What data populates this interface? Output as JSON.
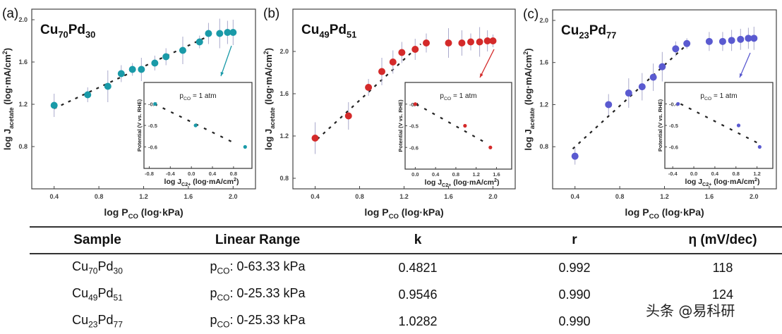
{
  "chart_data": [
    {
      "type": "scatter",
      "panel_label": "(a)",
      "title_parts": [
        {
          "t": "Cu"
        },
        {
          "t": "70",
          "s": "sub"
        },
        {
          "t": "Pd"
        },
        {
          "t": "30",
          "s": "sub"
        }
      ],
      "color": "#1a9aa8",
      "xlabel_parts": [
        {
          "t": "log P"
        },
        {
          "t": "CO",
          "s": "sub"
        },
        {
          "t": " (log·kPa)"
        }
      ],
      "ylabel_parts": [
        {
          "t": "log J"
        },
        {
          "t": "acetate",
          "s": "sub"
        },
        {
          "t": " (log·mA/cm"
        },
        {
          "t": "2",
          "s": "sup"
        },
        {
          "t": ")"
        }
      ],
      "xlim": [
        0.2,
        2.2
      ],
      "ylim": [
        0.4,
        2.1
      ],
      "xticks": [
        "0.4",
        "0.8",
        "1.2",
        "1.6",
        "2.0"
      ],
      "yticks": [
        "0.8",
        "1.2",
        "1.6",
        "2.0"
      ],
      "points": [
        [
          0.4,
          1.19,
          0.11
        ],
        [
          0.7,
          1.29,
          0.07
        ],
        [
          0.88,
          1.37,
          0.15
        ],
        [
          1.0,
          1.49,
          0.08
        ],
        [
          1.1,
          1.53,
          0.06
        ],
        [
          1.18,
          1.53,
          0.11
        ],
        [
          1.3,
          1.59,
          0.07
        ],
        [
          1.4,
          1.65,
          0.08
        ],
        [
          1.55,
          1.71,
          0.13
        ],
        [
          1.7,
          1.79,
          0.06
        ],
        [
          1.78,
          1.87,
          0.1
        ],
        [
          1.88,
          1.87,
          0.14
        ],
        [
          1.95,
          1.88,
          0.11
        ],
        [
          2.0,
          1.88,
          0.12
        ]
      ],
      "fit_line": [
        [
          0.4,
          1.16
        ],
        [
          1.75,
          1.83
        ]
      ],
      "inset": {
        "annotation_parts": [
          {
            "t": "p"
          },
          {
            "t": "CO",
            "s": "sub"
          },
          {
            "t": " = 1 atm"
          }
        ],
        "xlabel_parts": [
          {
            "t": "log J"
          },
          {
            "t": "C2+",
            "s": "sub"
          },
          {
            "t": " (log·mA/cm"
          },
          {
            "t": "2",
            "s": "sup"
          },
          {
            "t": ")"
          }
        ],
        "ylabel": "Potential (V vs. RHE)",
        "xlim": [
          -0.9,
          1.15
        ],
        "ylim": [
          -0.7,
          -0.3
        ],
        "xticks": [
          "-0.8",
          "-0.4",
          "0.0",
          "0.4",
          "0.8"
        ],
        "yticks": [
          "-0.4",
          "-0.5",
          "-0.6"
        ],
        "points": [
          [
            -0.69,
            -0.4
          ],
          [
            0.08,
            -0.5
          ],
          [
            1.02,
            -0.6
          ]
        ],
        "fit_line": [
          [
            -0.7,
            -0.4
          ],
          [
            0.8,
            -0.58
          ]
        ]
      }
    },
    {
      "type": "scatter",
      "panel_label": "(b)",
      "title_parts": [
        {
          "t": "Cu"
        },
        {
          "t": "49",
          "s": "sub"
        },
        {
          "t": "Pd"
        },
        {
          "t": "51",
          "s": "sub"
        }
      ],
      "color": "#d42a2a",
      "xlabel_parts": [
        {
          "t": "log P"
        },
        {
          "t": "CO",
          "s": "sub"
        },
        {
          "t": " (log·kPa)"
        }
      ],
      "ylabel_parts": [
        {
          "t": "log J"
        },
        {
          "t": "acetate",
          "s": "sub"
        },
        {
          "t": " (log·mA/cm"
        },
        {
          "t": "2",
          "s": "sup"
        },
        {
          "t": ")"
        }
      ],
      "xlim": [
        0.2,
        2.2
      ],
      "ylim": [
        0.7,
        2.4
      ],
      "xticks": [
        "0.4",
        "0.8",
        "1.2",
        "1.6",
        "2.0"
      ],
      "yticks": [
        "0.8",
        "1.2",
        "1.6",
        "2.0"
      ],
      "points": [
        [
          0.4,
          1.18,
          0.15
        ],
        [
          0.7,
          1.39,
          0.13
        ],
        [
          0.88,
          1.66,
          0.08
        ],
        [
          1.0,
          1.81,
          0.13
        ],
        [
          1.1,
          1.9,
          0.11
        ],
        [
          1.18,
          1.99,
          0.1
        ],
        [
          1.3,
          2.02,
          0.1
        ],
        [
          1.4,
          2.08,
          0.09
        ],
        [
          1.6,
          2.08,
          0.14
        ],
        [
          1.72,
          2.08,
          0.12
        ],
        [
          1.8,
          2.09,
          0.08
        ],
        [
          1.88,
          2.09,
          0.14
        ],
        [
          1.95,
          2.1,
          0.1
        ],
        [
          2.0,
          2.1,
          0.06
        ]
      ],
      "fit_line": [
        [
          0.42,
          1.17
        ],
        [
          1.35,
          2.07
        ]
      ],
      "inset": {
        "annotation_parts": [
          {
            "t": "p"
          },
          {
            "t": "CO",
            "s": "sub"
          },
          {
            "t": " = 1 atm"
          }
        ],
        "xlabel_parts": [
          {
            "t": "log J"
          },
          {
            "t": "C2+",
            "s": "sub"
          },
          {
            "t": " (log·mA/cm"
          },
          {
            "t": "2",
            "s": "sup"
          },
          {
            "t": ")"
          }
        ],
        "ylabel": "Potential (V vs. RHE)",
        "xlim": [
          -0.2,
          1.9
        ],
        "ylim": [
          -0.7,
          -0.3
        ],
        "xticks": [
          "0.0",
          "0.4",
          "0.8",
          "1.2",
          "1.6"
        ],
        "yticks": [
          "-0.4",
          "-0.5",
          "-0.6"
        ],
        "points": [
          [
            0.0,
            -0.4
          ],
          [
            0.98,
            -0.5
          ],
          [
            1.48,
            -0.6
          ]
        ],
        "fit_line": [
          [
            0.02,
            -0.4
          ],
          [
            1.4,
            -0.58
          ]
        ]
      }
    },
    {
      "type": "scatter",
      "panel_label": "(c)",
      "title_parts": [
        {
          "t": "Cu"
        },
        {
          "t": "23",
          "s": "sub"
        },
        {
          "t": "Pd"
        },
        {
          "t": "77",
          "s": "sub"
        }
      ],
      "color": "#5a5ad0",
      "xlabel_parts": [
        {
          "t": "log P"
        },
        {
          "t": "CO",
          "s": "sub"
        },
        {
          "t": " (log·kPa)"
        }
      ],
      "ylabel_parts": [
        {
          "t": "log J"
        },
        {
          "t": "acetate",
          "s": "sub"
        },
        {
          "t": " (log·mA/cm"
        },
        {
          "t": "2",
          "s": "sup"
        },
        {
          "t": ")"
        }
      ],
      "xlim": [
        0.2,
        2.2
      ],
      "ylim": [
        0.4,
        2.1
      ],
      "xticks": [
        "0.4",
        "0.8",
        "1.2",
        "1.6",
        "2.0"
      ],
      "yticks": [
        "0.8",
        "1.2",
        "1.6",
        "2.0"
      ],
      "points": [
        [
          0.4,
          0.71,
          0.08
        ],
        [
          0.7,
          1.2,
          0.1
        ],
        [
          0.88,
          1.31,
          0.14
        ],
        [
          1.0,
          1.37,
          0.13
        ],
        [
          1.1,
          1.46,
          0.13
        ],
        [
          1.18,
          1.56,
          0.14
        ],
        [
          1.3,
          1.73,
          0.07
        ],
        [
          1.4,
          1.78,
          0.05
        ],
        [
          1.6,
          1.8,
          0.09
        ],
        [
          1.72,
          1.8,
          0.09
        ],
        [
          1.8,
          1.81,
          0.1
        ],
        [
          1.88,
          1.82,
          0.1
        ],
        [
          1.95,
          1.83,
          0.1
        ],
        [
          2.0,
          1.83,
          0.11
        ]
      ],
      "fit_line": [
        [
          0.38,
          0.78
        ],
        [
          1.4,
          1.77
        ]
      ],
      "inset": {
        "annotation_parts": [
          {
            "t": "p"
          },
          {
            "t": "CO",
            "s": "sub"
          },
          {
            "t": " = 1 atm"
          }
        ],
        "xlabel_parts": [
          {
            "t": "log J"
          },
          {
            "t": "C2+",
            "s": "sub"
          },
          {
            "t": " (log·mA/cm"
          },
          {
            "t": "2",
            "s": "sup"
          },
          {
            "t": ")"
          }
        ],
        "ylabel": "Potential (V vs. RHE)",
        "xlim": [
          -0.55,
          1.5
        ],
        "ylim": [
          -0.7,
          -0.3
        ],
        "xticks": [
          "-0.4",
          "0.0",
          "0.4",
          "0.8",
          "1.2"
        ],
        "yticks": [
          "-0.4",
          "-0.5",
          "-0.6"
        ],
        "points": [
          [
            -0.3,
            -0.4
          ],
          [
            0.85,
            -0.5
          ],
          [
            1.25,
            -0.6
          ]
        ],
        "fit_line": [
          [
            -0.25,
            -0.4
          ],
          [
            1.2,
            -0.58
          ]
        ]
      }
    }
  ],
  "table": {
    "headers": [
      "Sample",
      "Linear Range",
      "k",
      "r",
      "η (mV/dec)"
    ],
    "rows": [
      {
        "sample": {
          "a": "Cu",
          "b": "70",
          "c": "Pd",
          "d": "30"
        },
        "range": {
          "p": "p",
          "sub": "CO",
          "rest": ": 0-63.33 kPa"
        },
        "k": "0.4821",
        "r": "0.992",
        "eta": "118"
      },
      {
        "sample": {
          "a": "Cu",
          "b": "49",
          "c": "Pd",
          "d": "51"
        },
        "range": {
          "p": "p",
          "sub": "CO",
          "rest": ": 0-25.33 kPa"
        },
        "k": "0.9546",
        "r": "0.990",
        "eta": "124"
      },
      {
        "sample": {
          "a": "Cu",
          "b": "23",
          "c": "Pd",
          "d": "77"
        },
        "range": {
          "p": "p",
          "sub": "CO",
          "rest": ": 0-25.33 kPa"
        },
        "k": "1.0282",
        "r": "0.990",
        "eta": ""
      }
    ]
  },
  "watermark": "头条 @易科研"
}
